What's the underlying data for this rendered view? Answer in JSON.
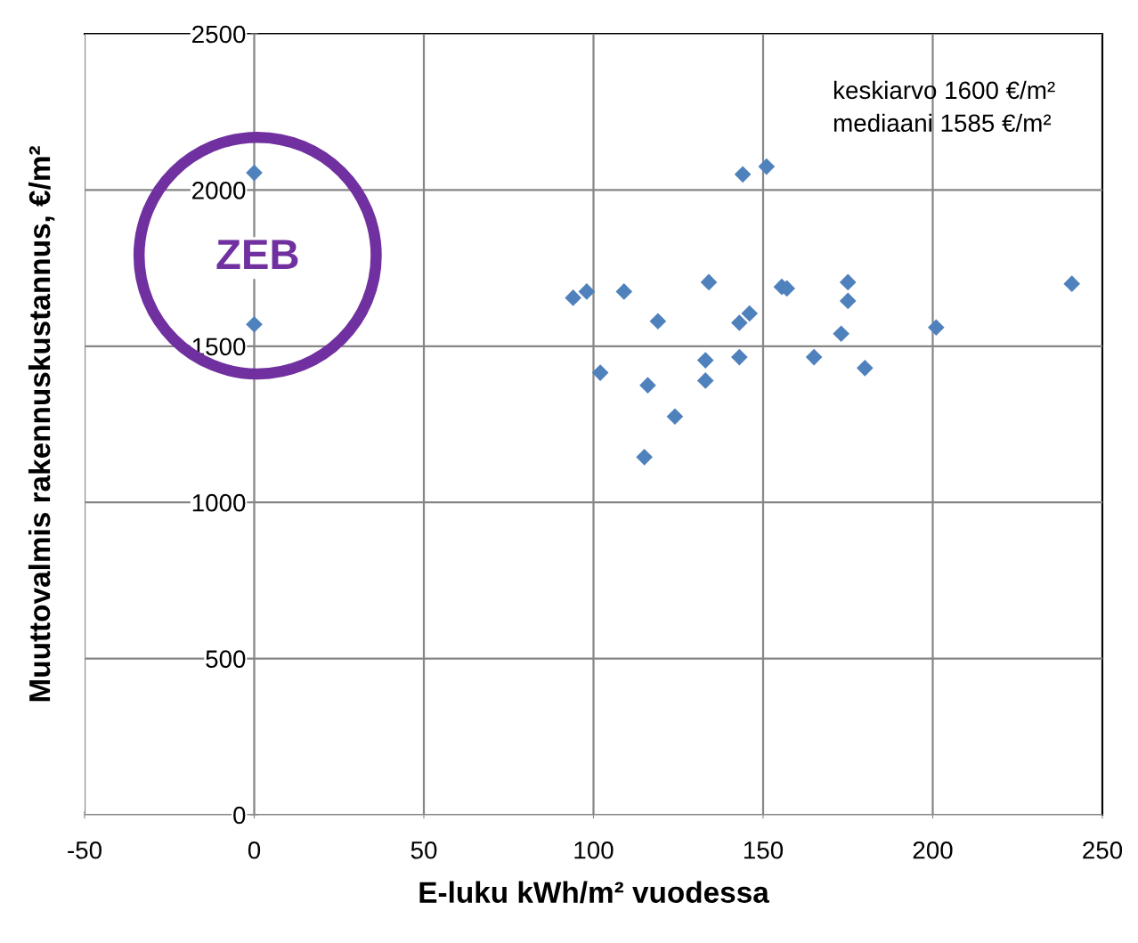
{
  "chart_data": {
    "type": "scatter",
    "xlabel": "E-luku kWh/m² vuodessa",
    "ylabel": "Muuttovalmis rakennuskustannus, €/m²",
    "x": [
      0,
      0,
      94,
      98,
      109,
      102,
      119,
      116,
      115,
      124,
      134,
      133,
      133,
      144,
      151,
      143,
      146,
      143,
      155.5,
      157,
      165,
      175,
      175,
      173,
      180,
      201,
      241
    ],
    "values": [
      2055,
      1570,
      1655,
      1675,
      1675,
      1415,
      1580,
      1375,
      1145,
      1275,
      1705,
      1455,
      1390,
      2050,
      2075,
      1575,
      1605,
      1465,
      1690,
      1685,
      1465,
      1705,
      1645,
      1540,
      1430,
      1560,
      1700
    ],
    "color": "#4f81bd",
    "marker": "diamond",
    "xlim": [
      -50,
      250
    ],
    "xticks": [
      -50,
      0,
      50,
      100,
      150,
      200,
      250
    ],
    "ylim": [
      0,
      2500
    ],
    "yticks": [
      0,
      500,
      1000,
      1500,
      2000,
      2500
    ],
    "grid": true,
    "annotations": [
      "keskiarvo 1600 €/m²",
      "mediaani 1585 €/m²",
      "ZEB"
    ]
  }
}
